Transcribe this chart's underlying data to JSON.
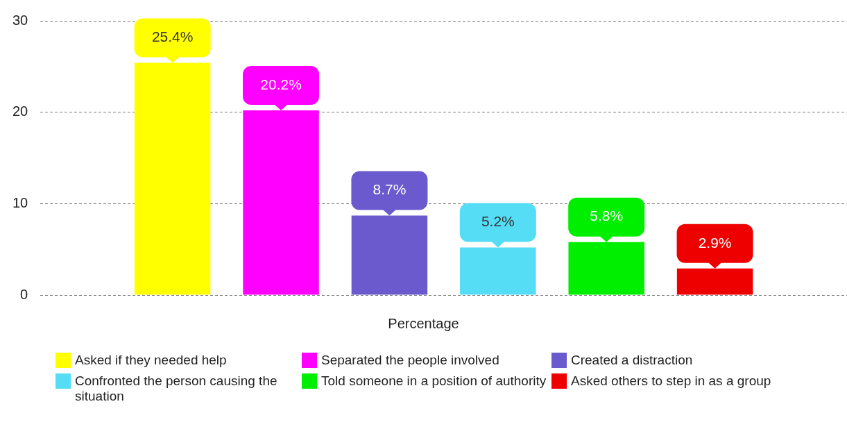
{
  "chart_data": {
    "type": "bar",
    "categories": [
      null
    ],
    "xlabel": "Percentage",
    "series": [
      {
        "name": "Asked if they needed help",
        "color": "#ffff00",
        "values": [
          25.4
        ],
        "value_labels": [
          "25.4%"
        ]
      },
      {
        "name": "Separated the people involved",
        "color": "#ff00ff",
        "values": [
          20.2
        ],
        "value_labels": [
          "20.2%"
        ]
      },
      {
        "name": "Created a distraction",
        "color": "#6a5acd",
        "values": [
          8.7
        ],
        "value_labels": [
          "8.7%"
        ]
      },
      {
        "name": "Confronted the person causing the situation",
        "color": "#55ddf5",
        "values": [
          5.2
        ],
        "value_labels": [
          "5.2%"
        ]
      },
      {
        "name": "Told someone in a position of authority",
        "color": "#00ee00",
        "values": [
          5.8
        ],
        "value_labels": [
          "5.8%"
        ]
      },
      {
        "name": "Asked others to step in as a group",
        "color": "#ee0000",
        "values": [
          2.9
        ],
        "value_labels": [
          "2.9%"
        ]
      }
    ],
    "ylim": [
      0,
      30
    ],
    "yticks": [
      0,
      10,
      20,
      30
    ],
    "grid": "y",
    "legend": "bottom"
  }
}
